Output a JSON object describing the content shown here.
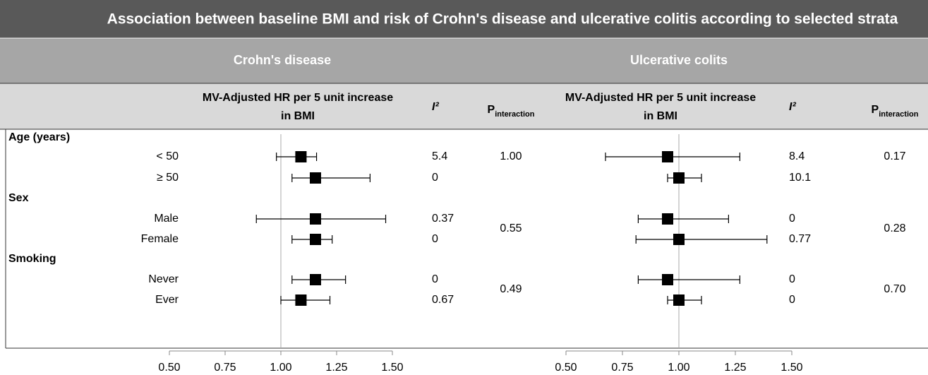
{
  "title": "Association between baseline BMI and risk of Crohn's disease and ulcerative colitis according to selected strata",
  "groups": [
    {
      "name": "Age (years)",
      "rows": [
        "< 50",
        "≥ 50"
      ]
    },
    {
      "name": "Sex",
      "rows": [
        "Male",
        "Female"
      ]
    },
    {
      "name": "Smoking",
      "rows": [
        "Never",
        "Ever"
      ]
    }
  ],
  "chart_data": [
    {
      "type": "forest",
      "title": "Crohn's disease",
      "x_label": [
        "MV-Adjusted HR per 5 unit increase",
        "in BMI"
      ],
      "i2_header": "I²",
      "p_header": "P",
      "p_header_sub": "interaction",
      "values": [
        1.09,
        1.155,
        1.155,
        1.155,
        1.155,
        1.09
      ],
      "lower": [
        0.98,
        1.05,
        0.89,
        1.05,
        1.05,
        1.0
      ],
      "upper": [
        1.16,
        1.4,
        1.47,
        1.23,
        1.29,
        1.22
      ],
      "i2": [
        "5.4",
        "0",
        "0.37",
        "0",
        "0",
        "0.67"
      ],
      "p_interaction": [
        "1.00",
        "0.55",
        "0.49"
      ],
      "xlim": [
        0.5,
        1.5
      ],
      "xticks": [
        {
          "value": 0.5,
          "label": "0.50"
        },
        {
          "value": 0.75,
          "label": "0.75"
        },
        {
          "value": 1.0,
          "label": "1.00"
        },
        {
          "value": 1.25,
          "label": "1.25"
        },
        {
          "value": 1.5,
          "label": "1.50"
        }
      ],
      "color": "#000000"
    },
    {
      "type": "forest",
      "title": "Ulcerative colits",
      "x_label": [
        "MV-Adjusted HR per 5 unit increase",
        "in BMI"
      ],
      "i2_header": "I²",
      "p_header": "P",
      "p_header_sub": "interaction",
      "values": [
        0.95,
        1.0,
        0.95,
        1.0,
        0.95,
        1.0
      ],
      "lower": [
        0.675,
        0.95,
        0.82,
        0.81,
        0.82,
        0.95
      ],
      "upper": [
        1.27,
        1.1,
        1.22,
        1.39,
        1.27,
        1.1
      ],
      "i2": [
        "8.4",
        "10.1",
        "0",
        "0.77",
        "0",
        "0"
      ],
      "p_interaction": [
        "0.17",
        "0.28",
        "0.70"
      ],
      "xlim": [
        0.5,
        1.5
      ],
      "xticks": [
        {
          "value": 0.5,
          "label": "0.50"
        },
        {
          "value": 0.75,
          "label": "0.75"
        },
        {
          "value": 1.0,
          "label": "1.00"
        },
        {
          "value": 1.25,
          "label": "1.25"
        },
        {
          "value": 1.5,
          "label": "1.50"
        }
      ],
      "color": "#000000"
    }
  ]
}
